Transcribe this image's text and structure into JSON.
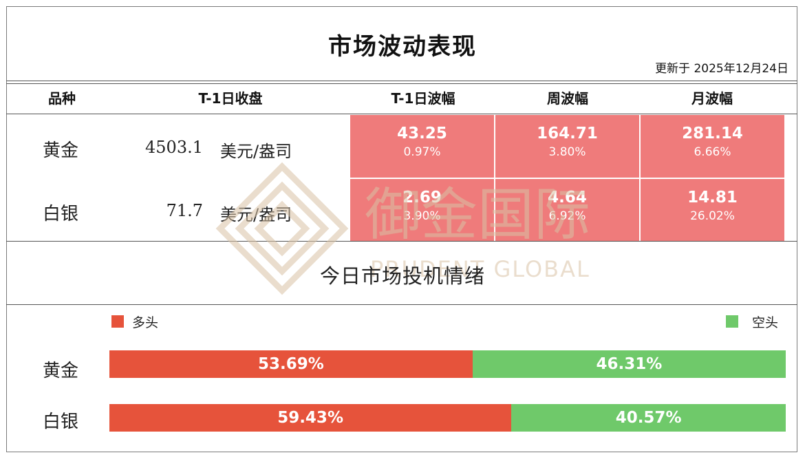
{
  "title": "市场波动表现",
  "updated": "更新于 2025年12月24日",
  "table": {
    "headers": [
      "品种",
      "T-1日收盘",
      "T-1日波幅",
      "周波幅",
      "月波幅"
    ],
    "rows": [
      {
        "name": "黄金",
        "close": "4503.1",
        "unit": "美元/盎司",
        "cells": [
          {
            "v": "43.25",
            "p": "0.97%"
          },
          {
            "v": "164.71",
            "p": "3.80%"
          },
          {
            "v": "281.14",
            "p": "6.66%"
          }
        ]
      },
      {
        "name": "白银",
        "close": "71.7",
        "unit": "美元/盎司",
        "cells": [
          {
            "v": "2.69",
            "p": "3.90%"
          },
          {
            "v": "4.64",
            "p": "6.92%"
          },
          {
            "v": "14.81",
            "p": "26.02%"
          }
        ]
      }
    ]
  },
  "sentiment": {
    "title": "今日市场投机情绪",
    "legend": {
      "long": "多头",
      "short": "空头"
    },
    "rows": [
      {
        "name": "黄金",
        "long": "53.69%",
        "short": "46.31%"
      },
      {
        "name": "白银",
        "long": "59.43%",
        "short": "40.57%"
      }
    ]
  },
  "watermark": {
    "cn": "御金国际",
    "en": "PRUDENT GLOBAL"
  },
  "colors": {
    "cell": "#ef7b7b",
    "long": "#e6533b",
    "short": "#6fc96a"
  },
  "chart_data": {
    "type": "bar",
    "title": "今日市场投机情绪",
    "categories": [
      "黄金",
      "白银"
    ],
    "series": [
      {
        "name": "多头",
        "values": [
          53.69,
          59.43
        ]
      },
      {
        "name": "空头",
        "values": [
          46.31,
          40.57
        ]
      }
    ],
    "ylim": [
      0,
      100
    ],
    "legend": "top"
  }
}
